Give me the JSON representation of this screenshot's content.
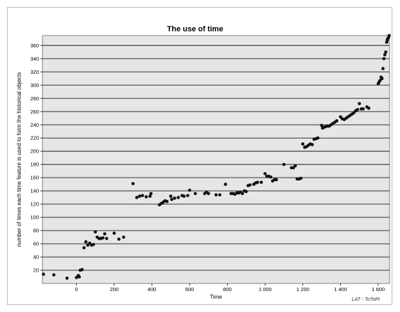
{
  "chart_data": {
    "type": "scatter",
    "title": "The use of time",
    "xlabel": "Time",
    "ylabel": "number of times each time feature is used to form the historical objects",
    "xlim": [
      -180,
      1660
    ],
    "ylim": [
      0,
      375
    ],
    "xticks": [
      0,
      200,
      400,
      600,
      800,
      1000,
      1200,
      1400,
      1600
    ],
    "xtick_labels": [
      "0",
      "200",
      "400",
      "600",
      "800",
      "1 000",
      "1 200",
      "1 400",
      "1 600"
    ],
    "yticks": [
      20,
      40,
      60,
      80,
      100,
      120,
      140,
      160,
      180,
      200,
      220,
      240,
      260,
      280,
      300,
      320,
      340,
      360
    ],
    "grid": "horizontal",
    "plot_background": "#e6e6e6",
    "point_color": "#111111",
    "credit": "LAT - ToToPI",
    "series": [
      {
        "points": [
          [
            -175,
            14
          ],
          [
            -120,
            13
          ],
          [
            -50,
            8
          ],
          [
            0,
            9
          ],
          [
            10,
            12
          ],
          [
            15,
            10
          ],
          [
            20,
            20
          ],
          [
            30,
            21
          ],
          [
            40,
            54
          ],
          [
            50,
            63
          ],
          [
            60,
            58
          ],
          [
            70,
            61
          ],
          [
            80,
            58
          ],
          [
            90,
            59
          ],
          [
            100,
            78
          ],
          [
            110,
            70
          ],
          [
            120,
            68
          ],
          [
            130,
            68
          ],
          [
            140,
            69
          ],
          [
            150,
            75
          ],
          [
            160,
            68
          ],
          [
            200,
            76
          ],
          [
            225,
            67
          ],
          [
            250,
            70
          ],
          [
            300,
            151
          ],
          [
            320,
            130
          ],
          [
            335,
            132
          ],
          [
            350,
            133
          ],
          [
            370,
            131
          ],
          [
            390,
            132
          ],
          [
            395,
            136
          ],
          [
            440,
            119
          ],
          [
            450,
            121
          ],
          [
            460,
            123
          ],
          [
            470,
            125
          ],
          [
            480,
            124
          ],
          [
            500,
            132
          ],
          [
            505,
            127
          ],
          [
            520,
            129
          ],
          [
            540,
            130
          ],
          [
            560,
            133
          ],
          [
            570,
            132
          ],
          [
            590,
            133
          ],
          [
            600,
            141
          ],
          [
            630,
            136
          ],
          [
            680,
            136
          ],
          [
            690,
            138
          ],
          [
            700,
            136
          ],
          [
            740,
            134
          ],
          [
            760,
            134
          ],
          [
            790,
            150
          ],
          [
            820,
            136
          ],
          [
            830,
            136
          ],
          [
            840,
            135
          ],
          [
            850,
            137
          ],
          [
            860,
            137
          ],
          [
            870,
            138
          ],
          [
            880,
            136
          ],
          [
            890,
            140
          ],
          [
            900,
            139
          ],
          [
            910,
            148
          ],
          [
            920,
            149
          ],
          [
            940,
            150
          ],
          [
            950,
            152
          ],
          [
            960,
            153
          ],
          [
            980,
            153
          ],
          [
            1000,
            166
          ],
          [
            1010,
            162
          ],
          [
            1020,
            162
          ],
          [
            1030,
            161
          ],
          [
            1040,
            155
          ],
          [
            1050,
            157
          ],
          [
            1060,
            157
          ],
          [
            1100,
            180
          ],
          [
            1140,
            175
          ],
          [
            1150,
            175
          ],
          [
            1160,
            178
          ],
          [
            1170,
            158
          ],
          [
            1180,
            158
          ],
          [
            1190,
            159
          ],
          [
            1200,
            211
          ],
          [
            1210,
            206
          ],
          [
            1220,
            207
          ],
          [
            1230,
            209
          ],
          [
            1240,
            211
          ],
          [
            1250,
            210
          ],
          [
            1260,
            218
          ],
          [
            1270,
            219
          ],
          [
            1280,
            220
          ],
          [
            1300,
            239
          ],
          [
            1305,
            235
          ],
          [
            1310,
            236
          ],
          [
            1320,
            237
          ],
          [
            1330,
            238
          ],
          [
            1340,
            238
          ],
          [
            1350,
            240
          ],
          [
            1360,
            242
          ],
          [
            1370,
            244
          ],
          [
            1380,
            246
          ],
          [
            1400,
            252
          ],
          [
            1410,
            249
          ],
          [
            1420,
            248
          ],
          [
            1430,
            250
          ],
          [
            1440,
            252
          ],
          [
            1450,
            254
          ],
          [
            1460,
            256
          ],
          [
            1470,
            258
          ],
          [
            1480,
            261
          ],
          [
            1490,
            263
          ],
          [
            1500,
            272
          ],
          [
            1510,
            264
          ],
          [
            1520,
            264
          ],
          [
            1540,
            267
          ],
          [
            1550,
            265
          ],
          [
            1600,
            302
          ],
          [
            1605,
            305
          ],
          [
            1610,
            307
          ],
          [
            1615,
            312
          ],
          [
            1620,
            310
          ],
          [
            1625,
            325
          ],
          [
            1630,
            340
          ],
          [
            1635,
            346
          ],
          [
            1640,
            350
          ],
          [
            1645,
            365
          ],
          [
            1648,
            368
          ],
          [
            1650,
            370
          ],
          [
            1655,
            372
          ],
          [
            1658,
            375
          ]
        ]
      }
    ]
  }
}
